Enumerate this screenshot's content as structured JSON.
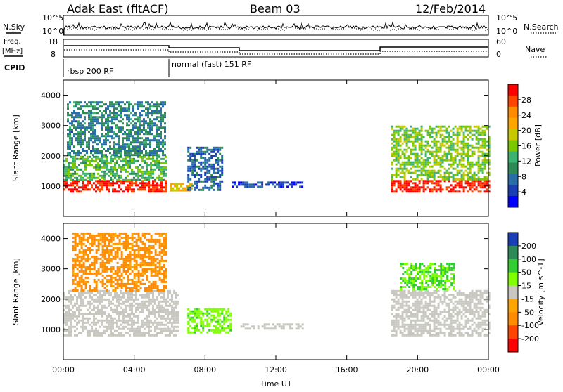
{
  "header": {
    "radar": "Adak East (fitACF)",
    "beam": "Beam 03",
    "date": "12/Feb/2014"
  },
  "sky_panel": {
    "left_label": "N.Sky",
    "right_label": "N.Search",
    "left_ticks": [
      "10^5",
      "10^0"
    ],
    "right_ticks": [
      "10^5",
      "10^0"
    ]
  },
  "freq_panel": {
    "left_label_1": "Freq.",
    "left_label_2": "[MHz]",
    "left_ticks": [
      "18",
      "8"
    ],
    "right_ticks": [
      "60",
      "0"
    ],
    "right_label": "Nave"
  },
  "cpid_panel": {
    "label": "CPID",
    "segments": [
      "rbsp 200 RF",
      "normal (fast) 151 RF"
    ]
  },
  "power_colorbar": {
    "title": "Power [dB]",
    "ticks": [
      "28",
      "24",
      "20",
      "16",
      "12",
      "8",
      "4"
    ],
    "colors": [
      "#ff0000",
      "#ff4500",
      "#ff8c00",
      "#ffa500",
      "#c8c800",
      "#7cc800",
      "#3cb371",
      "#2e8b57",
      "#2a6ea8",
      "#1a3fb5",
      "#0000ff"
    ]
  },
  "velocity_colorbar": {
    "title": "Velocity [m s^-1]",
    "ticks": [
      "200",
      "100",
      "50",
      "15",
      "-15",
      "-50",
      "-100",
      "-200"
    ],
    "colors": [
      "#1a3fb5",
      "#2e8b57",
      "#32cd32",
      "#7fff00",
      "#c8c8c0",
      "#ffa500",
      "#ff8c00",
      "#ff4500",
      "#ff0000"
    ]
  },
  "chart_data": [
    {
      "type": "heatmap",
      "panel": "power",
      "ylabel": "Slant Range [km]",
      "ylim": [
        0,
        4500
      ],
      "yticks": [
        1000,
        2000,
        3000,
        4000
      ],
      "xlim": [
        0,
        24
      ],
      "x": [
        "00:00",
        "04:00",
        "08:00",
        "12:00",
        "16:00",
        "20:00",
        "00:00"
      ],
      "regions": [
        {
          "start_h": 0.0,
          "end_h": 5.8,
          "range_km": [
            800,
            1200
          ],
          "level_db": 28
        },
        {
          "start_h": 0.0,
          "end_h": 5.8,
          "range_km": [
            1200,
            2000
          ],
          "level_db": 14
        },
        {
          "start_h": 0.2,
          "end_h": 5.8,
          "range_km": [
            2000,
            3800
          ],
          "level_db": 10
        },
        {
          "start_h": 6.0,
          "end_h": 7.2,
          "range_km": [
            850,
            1100
          ],
          "level_db": 20
        },
        {
          "start_h": 7.0,
          "end_h": 9.0,
          "range_km": [
            900,
            2300
          ],
          "level_db": 8
        },
        {
          "start_h": 9.5,
          "end_h": 13.5,
          "range_km": [
            950,
            1150
          ],
          "level_db": 6
        },
        {
          "start_h": 18.5,
          "end_h": 24.0,
          "range_km": [
            800,
            1200
          ],
          "level_db": 28
        },
        {
          "start_h": 18.5,
          "end_h": 24.0,
          "range_km": [
            1200,
            3000
          ],
          "level_db": 16
        }
      ]
    },
    {
      "type": "heatmap",
      "panel": "velocity",
      "ylabel": "Slant Range [km]",
      "xlabel": "Time UT",
      "ylim": [
        0,
        4500
      ],
      "yticks": [
        1000,
        2000,
        3000,
        4000
      ],
      "xlim": [
        0,
        24
      ],
      "x": [
        "00:00",
        "04:00",
        "08:00",
        "12:00",
        "16:00",
        "20:00",
        "00:00"
      ],
      "regions": [
        {
          "start_h": 0.0,
          "end_h": 6.5,
          "range_km": [
            800,
            2300
          ],
          "velocity_ms": 0
        },
        {
          "start_h": 0.5,
          "end_h": 5.8,
          "range_km": [
            2300,
            4200
          ],
          "velocity_ms": -60
        },
        {
          "start_h": 7.0,
          "end_h": 9.5,
          "range_km": [
            900,
            1700
          ],
          "velocity_ms": 40
        },
        {
          "start_h": 10.0,
          "end_h": 13.5,
          "range_km": [
            1000,
            1200
          ],
          "velocity_ms": 0
        },
        {
          "start_h": 18.5,
          "end_h": 24.0,
          "range_km": [
            800,
            2300
          ],
          "velocity_ms": 0
        },
        {
          "start_h": 19.0,
          "end_h": 22.0,
          "range_km": [
            2300,
            3200
          ],
          "velocity_ms": 50
        }
      ]
    }
  ]
}
